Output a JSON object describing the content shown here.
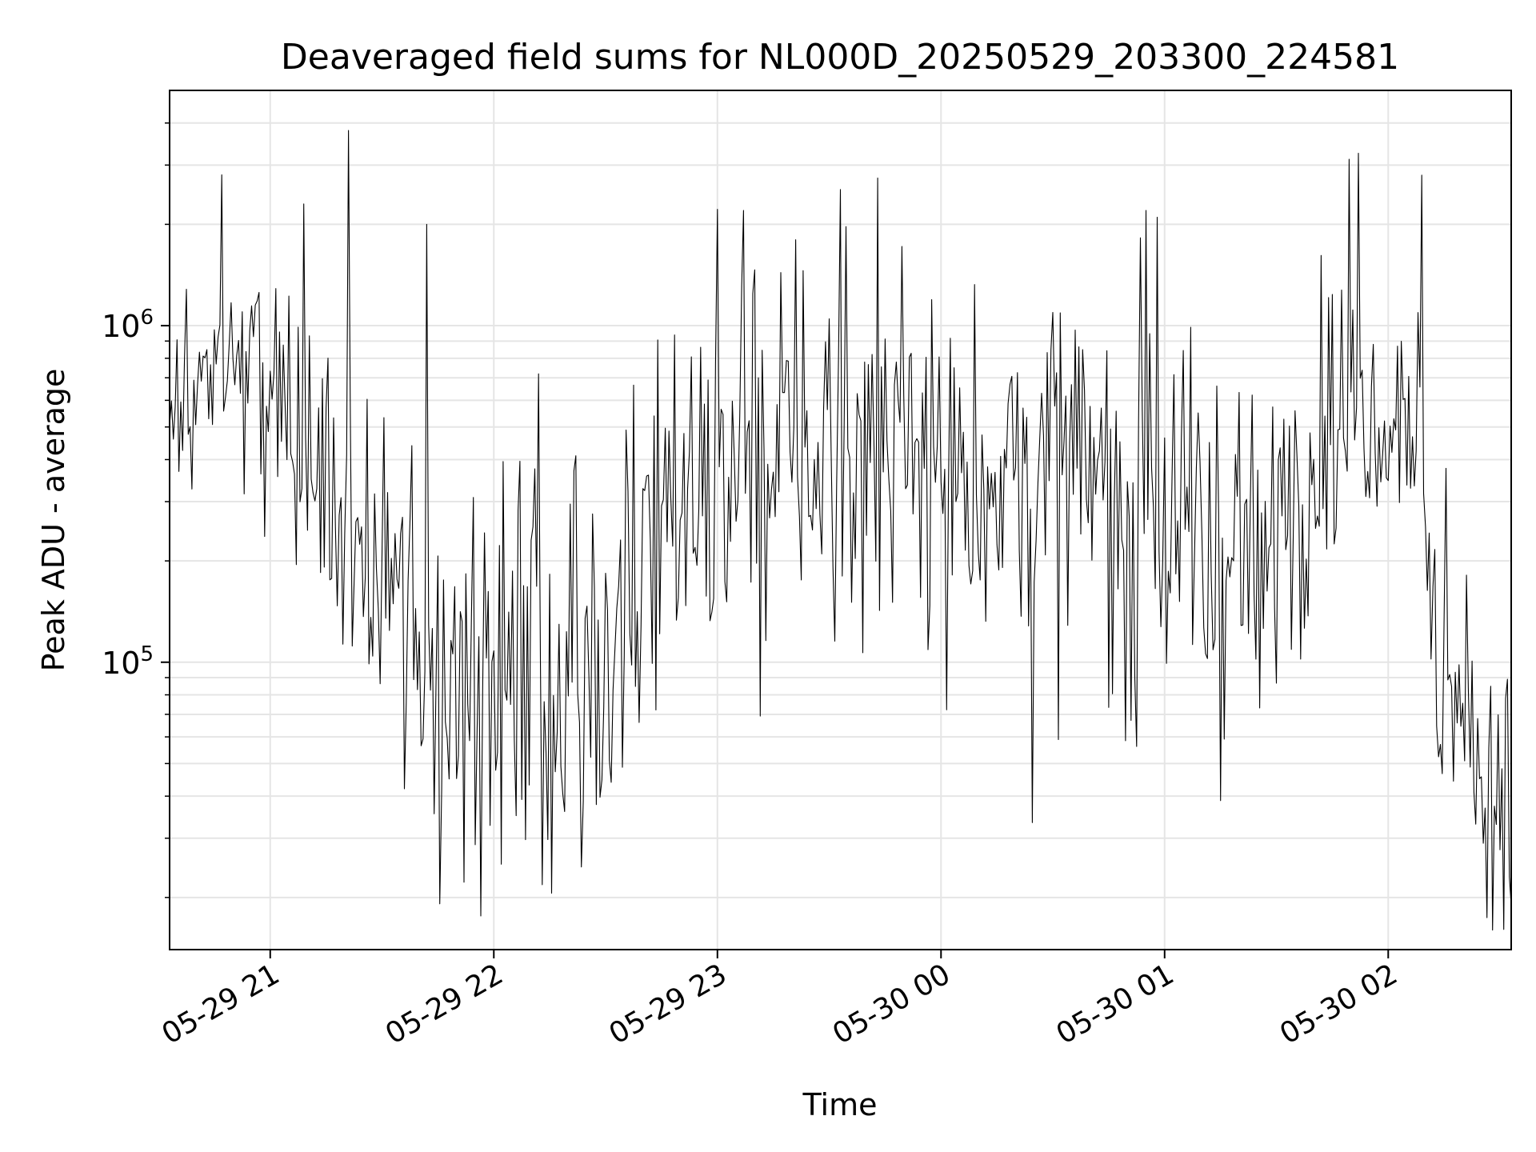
{
  "chart_data": {
    "type": "line",
    "title": "Deaveraged field sums for NL000D_20250529_203300_224581",
    "xlabel": "Time",
    "ylabel": "Peak ADU - average",
    "yscale": "log",
    "ylim": [
      14000,
      5000000
    ],
    "xlim": [
      "2025-05-29 20:33",
      "2025-05-30 02:33"
    ],
    "grid": true,
    "line_color": "#000000",
    "grid_color": "#e5e5e5",
    "x_ticks": [
      {
        "t": "2025-05-29 21:00",
        "label": "05-29 21"
      },
      {
        "t": "2025-05-29 22:00",
        "label": "05-29 22"
      },
      {
        "t": "2025-05-29 23:00",
        "label": "05-29 23"
      },
      {
        "t": "2025-05-30 00:00",
        "label": "05-30 00"
      },
      {
        "t": "2025-05-30 01:00",
        "label": "05-30 01"
      },
      {
        "t": "2025-05-30 02:00",
        "label": "05-30 02"
      }
    ],
    "y_ticks": [
      {
        "value": 100000,
        "base": "10",
        "exp": "5"
      },
      {
        "value": 1000000,
        "base": "10",
        "exp": "6"
      }
    ],
    "series_sampling_minutes": 0.5,
    "series_start": "2025-05-29 20:33",
    "series_log10_envelope": [
      {
        "t": "2025-05-29 20:33",
        "mid": 5.66,
        "spread": 0.2
      },
      {
        "t": "2025-05-29 20:55",
        "mid": 5.98,
        "spread": 0.18
      },
      {
        "t": "2025-05-29 21:10",
        "mid": 5.55,
        "spread": 0.32
      },
      {
        "t": "2025-05-29 21:25",
        "mid": 5.35,
        "spread": 0.42
      },
      {
        "t": "2025-05-29 21:40",
        "mid": 5.0,
        "spread": 0.48
      },
      {
        "t": "2025-05-29 22:00",
        "mid": 4.96,
        "spread": 0.46
      },
      {
        "t": "2025-05-29 22:25",
        "mid": 4.93,
        "spread": 0.46
      },
      {
        "t": "2025-05-29 22:45",
        "mid": 5.5,
        "spread": 0.52
      },
      {
        "t": "2025-05-29 23:15",
        "mid": 5.65,
        "spread": 0.45
      },
      {
        "t": "2025-05-29 23:45",
        "mid": 5.6,
        "spread": 0.42
      },
      {
        "t": "2025-05-30 00:30",
        "mid": 5.55,
        "spread": 0.45
      },
      {
        "t": "2025-05-30 01:05",
        "mid": 5.4,
        "spread": 0.45
      },
      {
        "t": "2025-05-30 01:25",
        "mid": 5.25,
        "spread": 0.45
      },
      {
        "t": "2025-05-30 01:45",
        "mid": 5.78,
        "spread": 0.3
      },
      {
        "t": "2025-05-30 02:08",
        "mid": 5.78,
        "spread": 0.25
      },
      {
        "t": "2025-05-30 02:12",
        "mid": 5.0,
        "spread": 0.3
      },
      {
        "t": "2025-05-30 02:33",
        "mid": 4.55,
        "spread": 0.28
      }
    ],
    "notable_points": [
      {
        "t": "2025-05-29 21:21",
        "value": 3800000
      },
      {
        "t": "2025-05-29 21:09",
        "value": 2300000
      },
      {
        "t": "2025-05-29 21:42",
        "value": 2000000
      },
      {
        "t": "2025-05-29 23:07",
        "value": 2200000
      },
      {
        "t": "2025-05-30 00:55",
        "value": 2200000
      },
      {
        "t": "2025-05-30 02:09",
        "value": 2800000
      },
      {
        "t": "2025-05-29 22:06",
        "value": 35000
      },
      {
        "t": "2025-05-29 22:19",
        "value": 36000
      },
      {
        "t": "2025-05-30 02:28",
        "value": 16000
      },
      {
        "t": "2025-05-30 02:33",
        "value": 19000
      }
    ]
  }
}
